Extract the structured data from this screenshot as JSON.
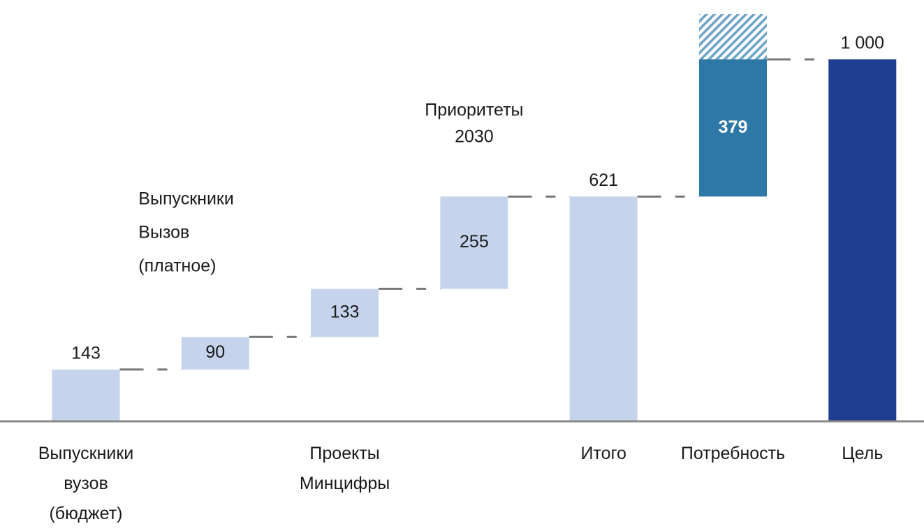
{
  "chart_data": {
    "type": "waterfall",
    "categories": [
      "Выпускники\nвузов\n(бюджет)",
      "Выпускники\nВызов\n(платное)",
      "Проекты\nМинцифры",
      "Приоритеты\n2030",
      "Итого",
      "Потребность",
      "Цель"
    ],
    "values": [
      143,
      90,
      133,
      255,
      621,
      379,
      1000
    ],
    "value_labels": [
      "143",
      "90",
      "133",
      "255",
      "621",
      "379",
      "1 000"
    ],
    "measures": [
      "relative",
      "relative",
      "relative",
      "relative",
      "total",
      "relative",
      "total"
    ],
    "colors": [
      "#c5d4ec",
      "#c5d4ec",
      "#c5d4ec",
      "#c5d4ec",
      "#c5d4ec",
      "#2e78a8",
      "#1f3d8f"
    ],
    "ylim": [
      0,
      1000
    ]
  }
}
